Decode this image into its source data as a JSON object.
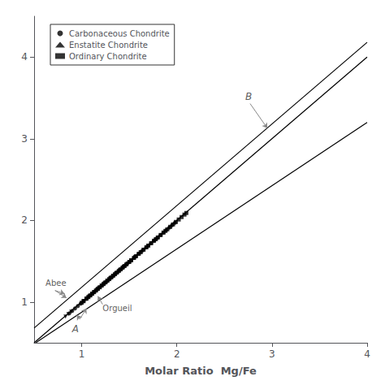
{
  "chart_data": {
    "type": "scatter",
    "xlabel": "Molar Ratio  Mg/Fe",
    "xlim": [
      0.5,
      4.0
    ],
    "ylim": [
      0.5,
      4.5
    ],
    "xticks": [
      1,
      2,
      3,
      4
    ],
    "yticks": [
      1,
      2,
      3,
      4
    ],
    "grid": false,
    "legend": "upper left",
    "series": [
      {
        "name": "Carbonaceous Chondrite",
        "type": "scatter",
        "marker": "circle",
        "color": "#000000",
        "x": [
          0.87,
          0.9,
          0.93,
          0.96,
          0.99,
          1.02,
          1.05,
          1.07,
          1.09,
          1.11,
          1.13,
          1.15,
          1.17,
          1.19,
          1.22,
          1.24,
          1.26,
          1.28,
          1.3,
          1.32,
          1.34,
          1.36,
          1.38,
          1.4,
          1.42,
          1.44,
          1.46,
          1.48,
          1.5,
          1.52,
          1.55,
          1.57,
          1.6,
          1.63,
          1.65,
          1.68,
          1.7,
          1.73,
          1.76,
          1.78,
          1.8,
          1.83,
          1.86,
          1.89,
          1.92,
          1.95,
          1.98
        ],
        "values": [
          0.86,
          0.89,
          0.92,
          0.95,
          0.98,
          1.01,
          1.04,
          1.06,
          1.08,
          1.1,
          1.12,
          1.14,
          1.16,
          1.18,
          1.21,
          1.23,
          1.25,
          1.27,
          1.29,
          1.31,
          1.33,
          1.35,
          1.37,
          1.39,
          1.41,
          1.43,
          1.45,
          1.47,
          1.49,
          1.51,
          1.54,
          1.56,
          1.59,
          1.62,
          1.64,
          1.67,
          1.69,
          1.72,
          1.75,
          1.77,
          1.79,
          1.82,
          1.85,
          1.88,
          1.91,
          1.94,
          1.97
        ]
      },
      {
        "name": "Enstatite Chondrite",
        "type": "scatter",
        "marker": "triangle_down",
        "color": "#000000",
        "x": [
          0.83,
          0.86,
          0.89,
          1.02,
          1.05,
          1.08,
          1.11,
          1.13,
          1.16,
          1.18,
          1.21,
          1.24,
          1.27,
          1.3,
          1.33,
          1.36,
          1.4,
          1.44,
          1.48,
          1.52,
          1.56
        ],
        "values": [
          0.82,
          0.85,
          0.88,
          1.01,
          1.04,
          1.07,
          1.1,
          1.12,
          1.15,
          1.17,
          1.2,
          1.23,
          1.26,
          1.29,
          1.32,
          1.35,
          1.39,
          1.43,
          1.47,
          1.51,
          1.55
        ]
      },
      {
        "name": "Ordinary Chondrite",
        "type": "scatter",
        "marker": "square",
        "color": "#000000",
        "x": [
          1.0,
          1.02,
          1.05,
          1.07,
          1.09,
          1.11,
          1.13,
          1.15,
          1.17,
          1.19,
          1.21,
          1.23,
          1.25,
          1.27,
          1.29,
          1.31,
          1.33,
          1.35,
          1.37,
          1.39,
          1.41,
          1.43,
          1.45,
          1.47,
          1.5,
          1.52,
          1.55,
          1.57,
          1.6,
          1.62,
          1.65,
          1.68,
          1.7,
          1.73,
          1.76,
          1.78,
          1.8,
          1.83,
          1.86,
          1.88,
          1.9,
          1.93,
          1.96,
          1.99,
          2.02,
          2.05,
          2.08,
          2.1
        ],
        "values": [
          0.99,
          1.01,
          1.04,
          1.06,
          1.08,
          1.1,
          1.12,
          1.14,
          1.16,
          1.18,
          1.2,
          1.22,
          1.24,
          1.26,
          1.28,
          1.3,
          1.32,
          1.34,
          1.36,
          1.38,
          1.4,
          1.42,
          1.44,
          1.46,
          1.49,
          1.51,
          1.54,
          1.56,
          1.59,
          1.61,
          1.64,
          1.67,
          1.69,
          1.72,
          1.75,
          1.77,
          1.79,
          1.82,
          1.85,
          1.87,
          1.89,
          1.92,
          1.95,
          1.98,
          2.01,
          2.04,
          2.07,
          2.09
        ]
      },
      {
        "type": "line",
        "line_style": "solid",
        "color": "#000000",
        "x": [
          0.5,
          4.0
        ],
        "values": [
          0.68,
          4.18
        ]
      },
      {
        "type": "line",
        "line_style": "solid",
        "color": "#000000",
        "x": [
          0.5,
          4.0
        ],
        "values": [
          0.5,
          4.0
        ]
      },
      {
        "type": "line",
        "line_style": "solid",
        "color": "#000000",
        "x": [
          0.52,
          4.0
        ],
        "values": [
          0.503,
          3.2
        ]
      }
    ],
    "annotations": [
      {
        "text": "Abee",
        "x": 0.62,
        "y": 1.18,
        "arrows": [
          {
            "from": [
              0.72,
              1.14
            ],
            "to": [
              0.82,
              1.1
            ]
          },
          {
            "from": [
              0.72,
              1.14
            ],
            "to": [
              0.84,
              1.05
            ]
          }
        ]
      },
      {
        "text": "Orgueil",
        "x": 1.22,
        "y": 0.97,
        "arrows": [
          {
            "from": [
              1.22,
              0.97
            ],
            "to": [
              1.17,
              1.07
            ]
          }
        ]
      },
      {
        "text": "A",
        "x": 0.9,
        "y": 0.73,
        "arrows": [
          {
            "from": [
              0.98,
              0.79
            ],
            "to": [
              1.05,
              0.92
            ]
          },
          {
            "from": [
              0.98,
              0.79
            ],
            "to": [
              0.95,
              0.84
            ]
          }
        ]
      },
      {
        "text": "B",
        "x": 2.72,
        "y": 3.46,
        "arrows": [
          {
            "from": [
              2.77,
              3.43
            ],
            "to": [
              2.95,
              3.13
            ]
          }
        ]
      }
    ]
  }
}
